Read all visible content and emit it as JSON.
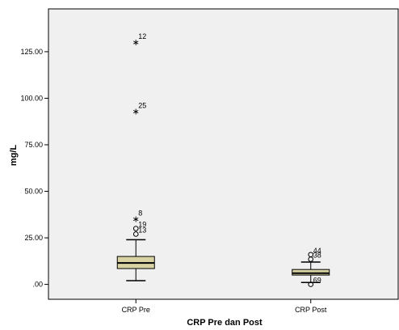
{
  "chart_data": {
    "type": "box",
    "title": "",
    "xlabel": "CRP Pre dan Post",
    "ylabel": "mg/L",
    "ylim": [
      -8,
      148
    ],
    "yticks": [
      0,
      25,
      50,
      75,
      100,
      125
    ],
    "ytick_labels": [
      ".00",
      "25.00",
      "50.00",
      "75.00",
      "100.00",
      "125.00"
    ],
    "grid": false,
    "colors": {
      "plot_bg": "#f0f0f0",
      "box_fill": "#d9d3a4",
      "stroke": "#000000"
    },
    "categories": [
      "CRP Pre",
      "CRP Post"
    ],
    "boxes": [
      {
        "name": "CRP Pre",
        "whisker_low": 2,
        "q1": 8.5,
        "median": 11.5,
        "q3": 15,
        "whisker_high": 24,
        "outliers": [
          {
            "label": "13",
            "value": 27,
            "marker": "circle"
          },
          {
            "label": "19",
            "value": 30,
            "marker": "circle"
          },
          {
            "label": "8",
            "value": 36,
            "marker": "star"
          },
          {
            "label": "25",
            "value": 94,
            "marker": "star"
          },
          {
            "label": "12",
            "value": 131,
            "marker": "star"
          }
        ]
      },
      {
        "name": "CRP Post",
        "whisker_low": 1,
        "q1": 5,
        "median": 6,
        "q3": 8,
        "whisker_high": 12,
        "outliers": [
          {
            "label": "69",
            "value": 0,
            "marker": "circle"
          },
          {
            "label": "38",
            "value": 13.5,
            "marker": "circle"
          },
          {
            "label": "44",
            "value": 16,
            "marker": "circle"
          }
        ]
      }
    ]
  }
}
